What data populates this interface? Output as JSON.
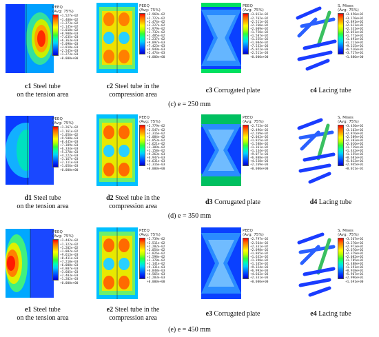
{
  "legend_title": "PEEQ",
  "legend_sub": "(Avg: 75%)",
  "legend_title_mises": "S, Mises",
  "rows": [
    {
      "row_caption": "(c) e = 250 mm",
      "panels": [
        {
          "tag": "c1",
          "caption": "Steel tube\non the tension area",
          "legend": [
            "+1.527e-02",
            "+1.400e-02",
            "+1.273e-02",
            "+1.145e-02",
            "+1.018e-02",
            "+8.908e-03",
            "+7.635e-03",
            "+6.363e-03",
            "+5.090e-03",
            "+3.818e-03",
            "+2.545e-03",
            "+1.273e-03",
            "+0.000e+00"
          ]
        },
        {
          "tag": "c2",
          "caption": "Steel tube in the\ncompression area",
          "legend": [
            "+2.969e-02",
            "+2.722e-02",
            "+2.474e-02",
            "+2.227e-02",
            "+1.979e-02",
            "+1.732e-02",
            "+1.485e-02",
            "+1.237e-02",
            "+9.897e-03",
            "+7.423e-03",
            "+4.949e-03",
            "+2.474e-03",
            "+0.000e+00"
          ]
        },
        {
          "tag": "c3",
          "caption": "Corrugated plate",
          "legend": [
            "+3.013e-02",
            "+2.762e-02",
            "+2.511e-02",
            "+2.260e-02",
            "+2.009e-02",
            "+1.758e-02",
            "+1.507e-02",
            "+1.255e-02",
            "+1.004e-02",
            "+7.533e-03",
            "+5.022e-03",
            "+2.511e-03",
            "+0.000e+00"
          ]
        },
        {
          "tag": "c4",
          "caption": "Lacing tube",
          "legend": [
            "+3.450e+02",
            "+3.170e+02",
            "+2.891e+02",
            "+2.611e+02",
            "+2.331e+02",
            "+2.051e+02",
            "+1.771e+02",
            "+1.491e+02",
            "+1.211e+02",
            "+9.315e+01",
            "+6.516e+01",
            "+3.717e+01",
            "+1.880e+00"
          ]
        }
      ]
    },
    {
      "row_caption": "(d) e = 350 mm",
      "panels": [
        {
          "tag": "d1",
          "caption": "Steel tube\non the tension area",
          "legend": [
            "+1.267e-02",
            "+1.161e-02",
            "+1.056e-02",
            "+9.500e-03",
            "+8.445e-03",
            "+7.389e-03",
            "+6.334e-03",
            "+5.278e-03",
            "+4.222e-03",
            "+3.167e-03",
            "+2.111e-03",
            "+1.056e-03",
            "+0.000e+00"
          ]
        },
        {
          "tag": "d2",
          "caption": "Steel tube in the\ncompression area",
          "legend": [
            "+2.779e-02",
            "+2.547e-02",
            "+2.316e-02",
            "+2.084e-02",
            "+1.853e-02",
            "+1.621e-02",
            "+1.389e-02",
            "+1.158e-02",
            "+9.263e-03",
            "+6.947e-03",
            "+4.631e-03",
            "+2.316e-03",
            "+0.000e+00"
          ]
        },
        {
          "tag": "d3",
          "caption": "Corrugated plate",
          "legend": [
            "+2.723e-02",
            "+2.496e-02",
            "+2.269e-02",
            "+2.042e-02",
            "+1.815e-02",
            "+1.588e-02",
            "+1.361e-02",
            "+1.134e-02",
            "+9.077e-03",
            "+6.808e-03",
            "+4.538e-03",
            "+2.269e-03",
            "+0.000e+00"
          ]
        },
        {
          "tag": "d4",
          "caption": "Lacing tube",
          "legend": [
            "+3.450e+02",
            "+3.163e+02",
            "+2.876e+02",
            "+2.589e+02",
            "+2.302e+02",
            "+2.016e+02",
            "+1.729e+02",
            "+1.442e+02",
            "+1.155e+02",
            "+8.681e+01",
            "+5.813e+01",
            "+2.945e+01",
            "+8.021e-01"
          ]
        }
      ]
    },
    {
      "row_caption": "(e) e = 450 mm",
      "panels": [
        {
          "tag": "e1",
          "caption": "Steel tube\non the tension area",
          "legend": [
            "+1.442e-02",
            "+1.322e-02",
            "+1.202e-02",
            "+1.082e-02",
            "+9.613e-03",
            "+8.411e-03",
            "+7.210e-03",
            "+6.008e-03",
            "+4.807e-03",
            "+3.605e-03",
            "+2.403e-03",
            "+1.202e-03",
            "+0.000e+00"
          ]
        },
        {
          "tag": "e2",
          "caption": "Steel tube in the\ncompression area",
          "legend": [
            "+2.739e-02",
            "+2.511e-02",
            "+2.282e-02",
            "+2.054e-02",
            "+1.826e-02",
            "+1.598e-02",
            "+1.370e-02",
            "+1.141e-02",
            "+9.131e-03",
            "+6.848e-03",
            "+4.565e-03",
            "+2.283e-03",
            "+0.000e+00"
          ]
        },
        {
          "tag": "e3",
          "caption": "Corrugated plate",
          "legend": [
            "+2.797e-02",
            "+2.564e-02",
            "+2.331e-02",
            "+2.098e-02",
            "+1.865e-02",
            "+1.632e-02",
            "+1.398e-02",
            "+1.165e-02",
            "+9.324e-03",
            "+6.993e-03",
            "+4.662e-03",
            "+2.331e-03",
            "+0.000e+00"
          ]
        },
        {
          "tag": "e4",
          "caption": "Lacing tube",
          "legend": [
            "+3.567e+02",
            "+3.270e+02",
            "+2.973e+02",
            "+2.676e+02",
            "+2.379e+02",
            "+2.082e+02",
            "+1.785e+02",
            "+1.488e+02",
            "+1.191e+02",
            "+8.938e+01",
            "+5.967e+01",
            "+2.996e+01",
            "+1.691e+00"
          ]
        }
      ]
    }
  ]
}
